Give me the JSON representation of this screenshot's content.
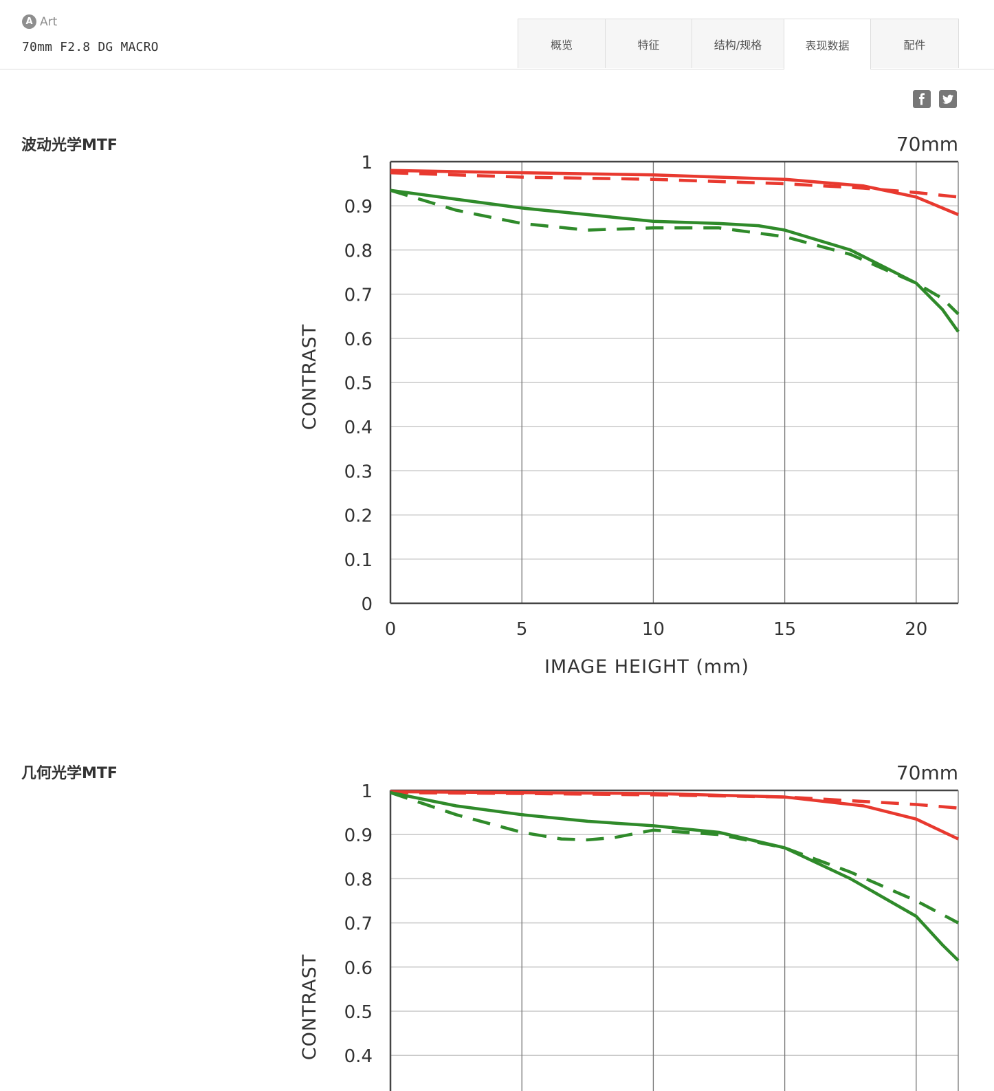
{
  "header": {
    "brand_badge": "A",
    "brand_label": "Art",
    "product_name": "70mm F2.8 DG MACRO",
    "tabs": [
      {
        "label": "概览"
      },
      {
        "label": "特征"
      },
      {
        "label": "结构/规格"
      },
      {
        "label": "表现数据",
        "active": true
      },
      {
        "label": "配件"
      }
    ]
  },
  "social": {
    "icons": [
      "facebook-icon",
      "twitter-icon"
    ]
  },
  "colors": {
    "red": "#e8392f",
    "green": "#2f8a2a",
    "grid": "#c8c8c8",
    "axis": "#444444"
  },
  "sections": [
    {
      "title": "波动光学MTF"
    },
    {
      "title": "几何光学MTF"
    }
  ],
  "chart_data": [
    {
      "type": "line",
      "title": "70mm",
      "xlabel": "IMAGE HEIGHT (mm)",
      "ylabel": "CONTRAST",
      "xlim": [
        0,
        21.6
      ],
      "ylim": [
        0,
        1
      ],
      "x_ticks": [
        "0",
        "5",
        "10",
        "15",
        "20"
      ],
      "y_ticks": [
        "0",
        "0.1",
        "0.2",
        "0.3",
        "0.4",
        "0.5",
        "0.6",
        "0.7",
        "0.8",
        "0.9",
        "1"
      ],
      "grid": true,
      "series": [
        {
          "color": "red",
          "style": "solid",
          "x": [
            0,
            5,
            10,
            15,
            18,
            20,
            21.6
          ],
          "y": [
            0.98,
            0.975,
            0.97,
            0.96,
            0.945,
            0.92,
            0.88
          ]
        },
        {
          "color": "red",
          "style": "dashed",
          "x": [
            0,
            5,
            10,
            15,
            18,
            20,
            21.6
          ],
          "y": [
            0.975,
            0.965,
            0.96,
            0.95,
            0.94,
            0.93,
            0.92
          ]
        },
        {
          "color": "green",
          "style": "solid",
          "x": [
            0,
            2.5,
            5,
            7.5,
            10,
            12.5,
            14,
            15,
            17.5,
            20,
            21,
            21.6
          ],
          "y": [
            0.935,
            0.915,
            0.895,
            0.88,
            0.865,
            0.86,
            0.855,
            0.845,
            0.8,
            0.725,
            0.665,
            0.615
          ]
        },
        {
          "color": "green",
          "style": "dashed",
          "x": [
            0,
            2.5,
            5,
            7.5,
            10,
            12.5,
            15,
            17.5,
            20,
            21,
            21.6
          ],
          "y": [
            0.935,
            0.89,
            0.86,
            0.845,
            0.85,
            0.85,
            0.83,
            0.79,
            0.725,
            0.69,
            0.655
          ]
        }
      ]
    },
    {
      "type": "line",
      "title": "70mm",
      "xlabel": "",
      "ylabel": "CONTRAST",
      "xlim": [
        0,
        21.6
      ],
      "ylim": [
        0,
        1
      ],
      "x_ticks": [],
      "y_ticks": [
        "0.4",
        "0.5",
        "0.6",
        "0.7",
        "0.8",
        "0.9",
        "1"
      ],
      "grid": true,
      "series": [
        {
          "color": "red",
          "style": "solid",
          "x": [
            0,
            5,
            10,
            15,
            18,
            20,
            21.6
          ],
          "y": [
            0.997,
            0.995,
            0.993,
            0.985,
            0.965,
            0.935,
            0.89
          ]
        },
        {
          "color": "red",
          "style": "dashed",
          "x": [
            0,
            5,
            10,
            15,
            18,
            20,
            21.6
          ],
          "y": [
            0.995,
            0.993,
            0.99,
            0.985,
            0.975,
            0.968,
            0.96
          ]
        },
        {
          "color": "green",
          "style": "solid",
          "x": [
            0,
            2.5,
            5,
            7.5,
            10,
            12.5,
            15,
            17.5,
            20,
            21,
            21.6
          ],
          "y": [
            0.995,
            0.965,
            0.945,
            0.93,
            0.92,
            0.905,
            0.87,
            0.8,
            0.715,
            0.65,
            0.615
          ]
        },
        {
          "color": "green",
          "style": "dashed",
          "x": [
            0,
            2.5,
            5,
            6.5,
            7.5,
            8.5,
            10,
            12.5,
            15,
            17.5,
            20,
            21.6
          ],
          "y": [
            0.995,
            0.945,
            0.905,
            0.89,
            0.888,
            0.893,
            0.91,
            0.9,
            0.87,
            0.815,
            0.75,
            0.7
          ]
        }
      ]
    }
  ]
}
